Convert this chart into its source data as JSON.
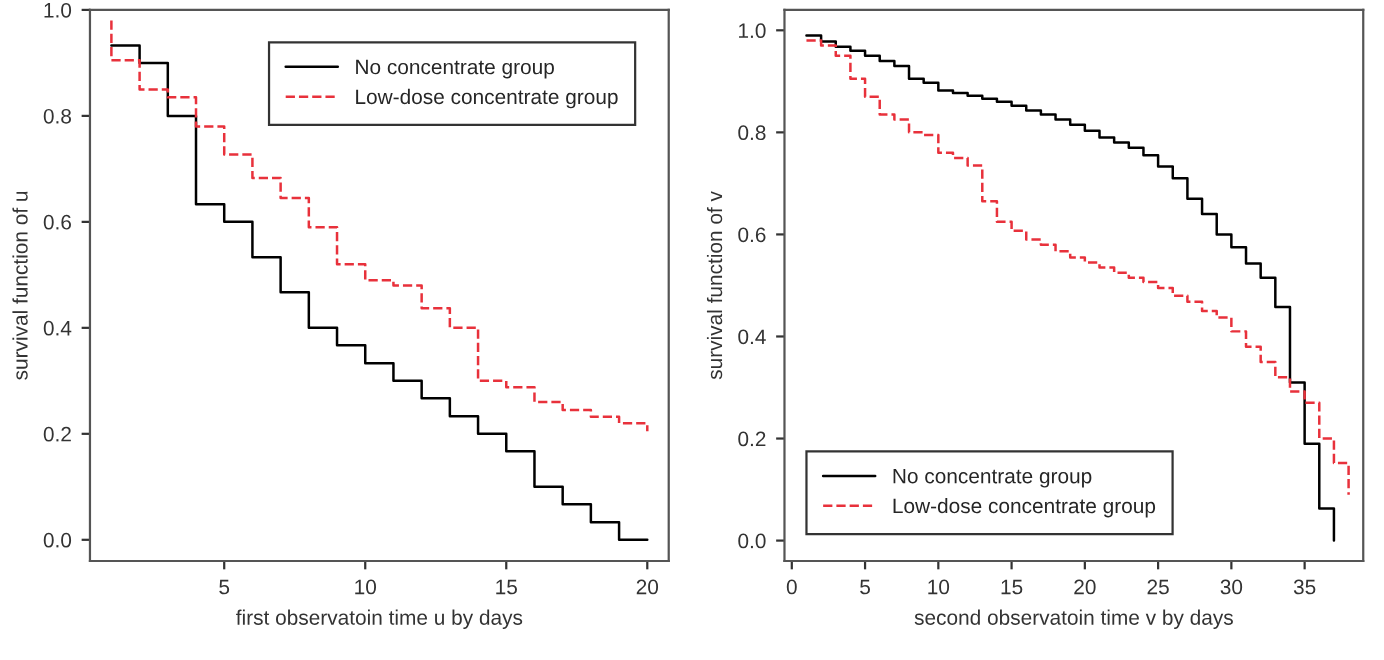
{
  "chart_data": [
    {
      "type": "step",
      "xlabel": "first observatoin time u by days",
      "ylabel": "survival function of u",
      "xlim": [
        0.24,
        20.76
      ],
      "ylim": [
        -0.04,
        1.0
      ],
      "xticks": [
        5,
        10,
        15,
        20
      ],
      "yticks": [
        {
          "value": 0,
          "label": "0.0"
        },
        {
          "value": 0.2,
          "label": "0.2"
        },
        {
          "value": 0.4,
          "label": "0.4"
        },
        {
          "value": 0.6,
          "label": "0.6"
        },
        {
          "value": 0.8,
          "label": "0.8"
        },
        {
          "value": 1.0,
          "label": "1.0"
        }
      ],
      "legend": "top right",
      "grid": false,
      "series": [
        {
          "name": "No concentrate group",
          "color": "#000000",
          "line_style": "solid",
          "x": [
            1,
            2,
            3,
            4,
            5,
            6,
            7,
            8,
            9,
            10,
            11,
            12,
            13,
            14,
            15,
            16,
            17,
            18,
            19,
            20
          ],
          "values": [
            0.933,
            0.9,
            0.8,
            0.633,
            0.6,
            0.533,
            0.467,
            0.4,
            0.367,
            0.333,
            0.3,
            0.267,
            0.233,
            0.2,
            0.167,
            0.1,
            0.067,
            0.033,
            0.0,
            0.0
          ]
        },
        {
          "name": "Low-dose concentrate group",
          "color": "#e8313b",
          "line_style": "dashed",
          "x": [
            1,
            1,
            2,
            3,
            4,
            5,
            6,
            7,
            8,
            9,
            10,
            11,
            12,
            13,
            14,
            15,
            16,
            17,
            18,
            19,
            20
          ],
          "values": [
            0.98,
            0.905,
            0.85,
            0.835,
            0.78,
            0.727,
            0.683,
            0.645,
            0.59,
            0.52,
            0.49,
            0.48,
            0.437,
            0.4,
            0.3,
            0.288,
            0.26,
            0.245,
            0.232,
            0.22,
            0.205
          ]
        }
      ]
    },
    {
      "type": "step",
      "xlabel": "second observatoin time v by days",
      "ylabel": "survival function of v",
      "xlim": [
        -0.5,
        39
      ],
      "ylim": [
        -0.04,
        1.04
      ],
      "xticks": [
        0,
        5,
        10,
        15,
        20,
        25,
        30,
        35
      ],
      "yticks": [
        {
          "value": 0,
          "label": "0.0"
        },
        {
          "value": 0.2,
          "label": "0.2"
        },
        {
          "value": 0.4,
          "label": "0.4"
        },
        {
          "value": 0.6,
          "label": "0.6"
        },
        {
          "value": 0.8,
          "label": "0.8"
        },
        {
          "value": 1.0,
          "label": "1.0"
        }
      ],
      "legend": "bottom left",
      "grid": false,
      "series": [
        {
          "name": "No concentrate group",
          "color": "#000000",
          "line_style": "solid",
          "x": [
            1,
            2,
            3,
            4,
            5,
            6,
            7,
            8,
            9,
            10,
            11,
            12,
            13,
            14,
            15,
            16,
            17,
            18,
            19,
            20,
            21,
            22,
            23,
            24,
            25,
            26,
            27,
            28,
            29,
            30,
            31,
            32,
            33,
            34,
            35,
            36,
            37
          ],
          "values": [
            0.99,
            0.978,
            0.968,
            0.96,
            0.95,
            0.94,
            0.93,
            0.905,
            0.897,
            0.882,
            0.877,
            0.872,
            0.866,
            0.86,
            0.852,
            0.843,
            0.835,
            0.825,
            0.815,
            0.803,
            0.79,
            0.78,
            0.77,
            0.755,
            0.733,
            0.71,
            0.67,
            0.64,
            0.6,
            0.575,
            0.543,
            0.515,
            0.458,
            0.31,
            0.19,
            0.063,
            0.0
          ]
        },
        {
          "name": "Low-dose concentrate group",
          "color": "#e8313b",
          "line_style": "dashed",
          "x": [
            1,
            2,
            3,
            4,
            5,
            6,
            7,
            8,
            9,
            10,
            11,
            12,
            13,
            14,
            15,
            16,
            17,
            18,
            19,
            20,
            21,
            22,
            23,
            24,
            25,
            26,
            27,
            28,
            29,
            30,
            31,
            32,
            33,
            34,
            35,
            36,
            37,
            38
          ],
          "values": [
            0.98,
            0.97,
            0.95,
            0.905,
            0.87,
            0.835,
            0.825,
            0.8,
            0.795,
            0.76,
            0.75,
            0.735,
            0.665,
            0.625,
            0.607,
            0.59,
            0.58,
            0.567,
            0.555,
            0.545,
            0.535,
            0.525,
            0.515,
            0.507,
            0.495,
            0.48,
            0.468,
            0.45,
            0.437,
            0.41,
            0.38,
            0.35,
            0.32,
            0.292,
            0.27,
            0.2,
            0.152,
            0.09
          ]
        }
      ]
    }
  ]
}
